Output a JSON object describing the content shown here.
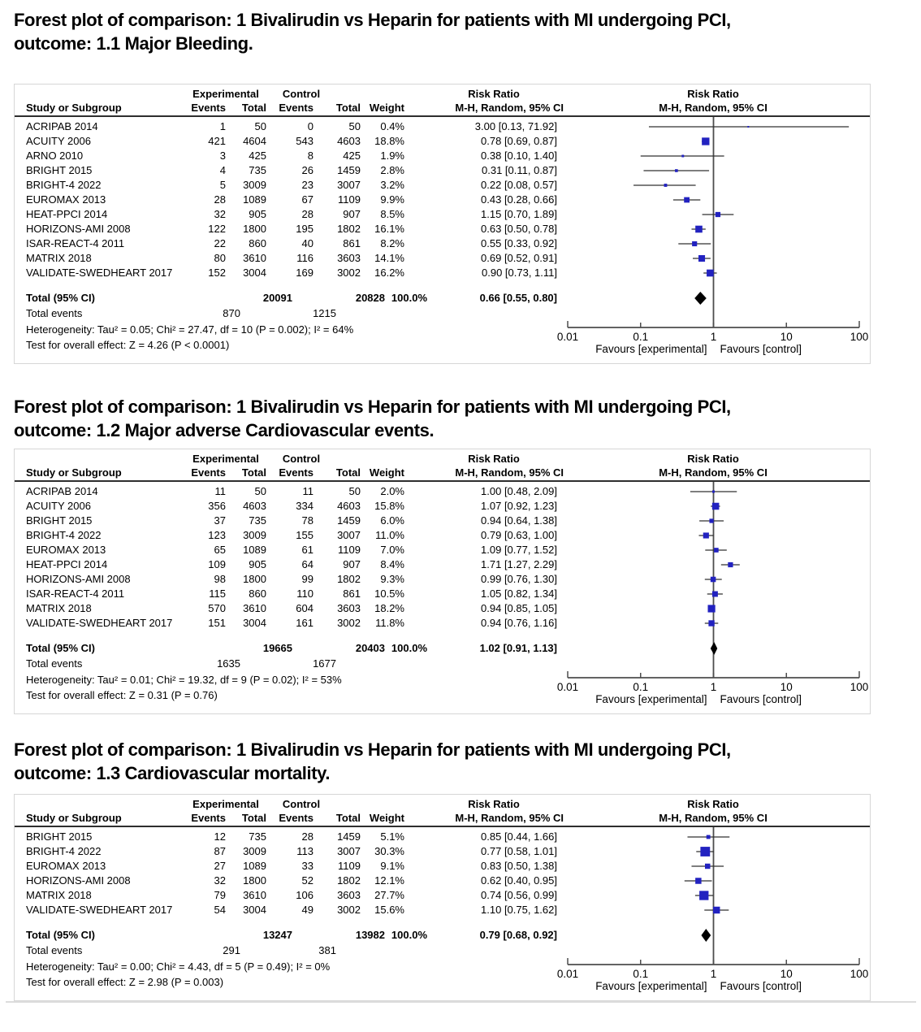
{
  "colors": {
    "marker_blue": "#2222c0",
    "ci_line": "#303030",
    "axis_gray": "#4d4d4d",
    "diamond_black": "#000000",
    "header_rule": "#2e2e2e",
    "panel_border": "#d6d6d6"
  },
  "axis": {
    "scale": "log",
    "min": 0.01,
    "max": 100,
    "tick_labels": [
      "0.01",
      "0.1",
      "1",
      "10",
      "100"
    ],
    "favours_left": "Favours [experimental]",
    "favours_right": "Favours [control]"
  },
  "column_headers": {
    "group_experimental": "Experimental",
    "group_control": "Control",
    "group_risk_ratio_text": "Risk Ratio",
    "group_risk_ratio_plot": "Risk Ratio",
    "study": "Study or Subgroup",
    "events": "Events",
    "total": "Total",
    "weight": "Weight",
    "mh_ci_text": "M-H, Random, 95% CI",
    "mh_ci_plot": "M-H, Random, 95% CI"
  },
  "panels": [
    {
      "title_line1": "Forest plot of comparison: 1 Bivalirudin vs Heparin for patients with MI undergoing PCI,",
      "title_line2": "outcome: 1.1 Major Bleeding.",
      "rows": [
        [
          "ACRIPAB 2014",
          "1",
          "50",
          "0",
          "50",
          "0.4%",
          "3.00 [0.13, 71.92]"
        ],
        [
          "ACUITY 2006",
          "421",
          "4604",
          "543",
          "4603",
          "18.8%",
          "0.78 [0.69, 0.87]"
        ],
        [
          "ARNO 2010",
          "3",
          "425",
          "8",
          "425",
          "1.9%",
          "0.38 [0.10, 1.40]"
        ],
        [
          "BRIGHT 2015",
          "4",
          "735",
          "26",
          "1459",
          "2.8%",
          "0.31 [0.11, 0.87]"
        ],
        [
          "BRIGHT-4 2022",
          "5",
          "3009",
          "23",
          "3007",
          "3.2%",
          "0.22 [0.08, 0.57]"
        ],
        [
          "EUROMAX 2013",
          "28",
          "1089",
          "67",
          "1109",
          "9.9%",
          "0.43 [0.28, 0.66]"
        ],
        [
          "HEAT-PPCI 2014",
          "32",
          "905",
          "28",
          "907",
          "8.5%",
          "1.15 [0.70, 1.89]"
        ],
        [
          "HORIZONS-AMI 2008",
          "122",
          "1800",
          "195",
          "1802",
          "16.1%",
          "0.63 [0.50, 0.78]"
        ],
        [
          "ISAR-REACT-4 2011",
          "22",
          "860",
          "40",
          "861",
          "8.2%",
          "0.55 [0.33, 0.92]"
        ],
        [
          "MATRIX 2018",
          "80",
          "3610",
          "116",
          "3603",
          "14.1%",
          "0.69 [0.52, 0.91]"
        ],
        [
          "VALIDATE-SWEDHEART 2017",
          "152",
          "3004",
          "169",
          "3002",
          "16.2%",
          "0.90 [0.73, 1.11]"
        ]
      ],
      "total_row": [
        "Total (95% CI)",
        "20091",
        "20828",
        "100.0%",
        "0.66 [0.55, 0.80]"
      ],
      "total_events": [
        "Total events",
        "870",
        "1215"
      ],
      "heterogeneity": "Heterogeneity: Tau² = 0.05; Chi² = 27.47, df = 10 (P = 0.002); I² = 64%",
      "overall_effect": "Test for overall effect: Z = 4.26 (P < 0.0001)"
    },
    {
      "title_line1": "Forest plot of comparison: 1 Bivalirudin vs Heparin for patients with MI undergoing PCI,",
      "title_line2": "outcome: 1.2 Major adverse Cardiovascular events.",
      "rows": [
        [
          "ACRIPAB 2014",
          "11",
          "50",
          "11",
          "50",
          "2.0%",
          "1.00 [0.48, 2.09]"
        ],
        [
          "ACUITY 2006",
          "356",
          "4603",
          "334",
          "4603",
          "15.8%",
          "1.07 [0.92, 1.23]"
        ],
        [
          "BRIGHT 2015",
          "37",
          "735",
          "78",
          "1459",
          "6.0%",
          "0.94 [0.64, 1.38]"
        ],
        [
          "BRIGHT-4 2022",
          "123",
          "3009",
          "155",
          "3007",
          "11.0%",
          "0.79 [0.63, 1.00]"
        ],
        [
          "EUROMAX 2013",
          "65",
          "1089",
          "61",
          "1109",
          "7.0%",
          "1.09 [0.77, 1.52]"
        ],
        [
          "HEAT-PPCI 2014",
          "109",
          "905",
          "64",
          "907",
          "8.4%",
          "1.71 [1.27, 2.29]"
        ],
        [
          "HORIZONS-AMI 2008",
          "98",
          "1800",
          "99",
          "1802",
          "9.3%",
          "0.99 [0.76, 1.30]"
        ],
        [
          "ISAR-REACT-4 2011",
          "115",
          "860",
          "110",
          "861",
          "10.5%",
          "1.05 [0.82, 1.34]"
        ],
        [
          "MATRIX 2018",
          "570",
          "3610",
          "604",
          "3603",
          "18.2%",
          "0.94 [0.85, 1.05]"
        ],
        [
          "VALIDATE-SWEDHEART 2017",
          "151",
          "3004",
          "161",
          "3002",
          "11.8%",
          "0.94 [0.76, 1.16]"
        ]
      ],
      "total_row": [
        "Total (95% CI)",
        "19665",
        "20403",
        "100.0%",
        "1.02 [0.91, 1.13]"
      ],
      "total_events": [
        "Total events",
        "1635",
        "1677"
      ],
      "heterogeneity": "Heterogeneity: Tau² = 0.01; Chi² = 19.32, df = 9 (P = 0.02); I² = 53%",
      "overall_effect": "Test for overall effect: Z = 0.31 (P = 0.76)"
    },
    {
      "title_line1": "Forest plot of comparison: 1 Bivalirudin vs Heparin for patients with MI undergoing PCI,",
      "title_line2": "outcome: 1.3 Cardiovascular mortality.",
      "rows": [
        [
          "BRIGHT 2015",
          "12",
          "735",
          "28",
          "1459",
          "5.1%",
          "0.85 [0.44, 1.66]"
        ],
        [
          "BRIGHT-4 2022",
          "87",
          "3009",
          "113",
          "3007",
          "30.3%",
          "0.77 [0.58, 1.01]"
        ],
        [
          "EUROMAX 2013",
          "27",
          "1089",
          "33",
          "1109",
          "9.1%",
          "0.83 [0.50, 1.38]"
        ],
        [
          "HORIZONS-AMI 2008",
          "32",
          "1800",
          "52",
          "1802",
          "12.1%",
          "0.62 [0.40, 0.95]"
        ],
        [
          "MATRIX 2018",
          "79",
          "3610",
          "106",
          "3603",
          "27.7%",
          "0.74 [0.56, 0.99]"
        ],
        [
          "VALIDATE-SWEDHEART 2017",
          "54",
          "3004",
          "49",
          "3002",
          "15.6%",
          "1.10 [0.75, 1.62]"
        ]
      ],
      "total_row": [
        "Total (95% CI)",
        "13247",
        "13982",
        "100.0%",
        "0.79 [0.68, 0.92]"
      ],
      "total_events": [
        "Total events",
        "291",
        "381"
      ],
      "heterogeneity": "Heterogeneity: Tau² = 0.00; Chi² = 4.43, df = 5 (P = 0.49); I² = 0%",
      "overall_effect": "Test for overall effect: Z = 2.98 (P = 0.003)"
    }
  ],
  "chart_data": [
    {
      "type": "scatter",
      "subtype": "forest-plot",
      "title": "1.1 Major Bleeding",
      "x_scale": "log",
      "x_range": [
        0.01,
        100
      ],
      "points": [
        {
          "study": "ACRIPAB 2014",
          "rr": 3.0,
          "ci": [
            0.13,
            71.92
          ],
          "weight_pct": 0.4
        },
        {
          "study": "ACUITY 2006",
          "rr": 0.78,
          "ci": [
            0.69,
            0.87
          ],
          "weight_pct": 18.8
        },
        {
          "study": "ARNO 2010",
          "rr": 0.38,
          "ci": [
            0.1,
            1.4
          ],
          "weight_pct": 1.9
        },
        {
          "study": "BRIGHT 2015",
          "rr": 0.31,
          "ci": [
            0.11,
            0.87
          ],
          "weight_pct": 2.8
        },
        {
          "study": "BRIGHT-4 2022",
          "rr": 0.22,
          "ci": [
            0.08,
            0.57
          ],
          "weight_pct": 3.2
        },
        {
          "study": "EUROMAX 2013",
          "rr": 0.43,
          "ci": [
            0.28,
            0.66
          ],
          "weight_pct": 9.9
        },
        {
          "study": "HEAT-PPCI 2014",
          "rr": 1.15,
          "ci": [
            0.7,
            1.89
          ],
          "weight_pct": 8.5
        },
        {
          "study": "HORIZONS-AMI 2008",
          "rr": 0.63,
          "ci": [
            0.5,
            0.78
          ],
          "weight_pct": 16.1
        },
        {
          "study": "ISAR-REACT-4 2011",
          "rr": 0.55,
          "ci": [
            0.33,
            0.92
          ],
          "weight_pct": 8.2
        },
        {
          "study": "MATRIX 2018",
          "rr": 0.69,
          "ci": [
            0.52,
            0.91
          ],
          "weight_pct": 14.1
        },
        {
          "study": "VALIDATE-SWEDHEART 2017",
          "rr": 0.9,
          "ci": [
            0.73,
            1.11
          ],
          "weight_pct": 16.2
        }
      ],
      "summary": {
        "rr": 0.66,
        "ci": [
          0.55,
          0.8
        ]
      }
    },
    {
      "type": "scatter",
      "subtype": "forest-plot",
      "title": "1.2 Major adverse Cardiovascular events",
      "x_scale": "log",
      "x_range": [
        0.01,
        100
      ],
      "points": [
        {
          "study": "ACRIPAB 2014",
          "rr": 1.0,
          "ci": [
            0.48,
            2.09
          ],
          "weight_pct": 2.0
        },
        {
          "study": "ACUITY 2006",
          "rr": 1.07,
          "ci": [
            0.92,
            1.23
          ],
          "weight_pct": 15.8
        },
        {
          "study": "BRIGHT 2015",
          "rr": 0.94,
          "ci": [
            0.64,
            1.38
          ],
          "weight_pct": 6.0
        },
        {
          "study": "BRIGHT-4 2022",
          "rr": 0.79,
          "ci": [
            0.63,
            1.0
          ],
          "weight_pct": 11.0
        },
        {
          "study": "EUROMAX 2013",
          "rr": 1.09,
          "ci": [
            0.77,
            1.52
          ],
          "weight_pct": 7.0
        },
        {
          "study": "HEAT-PPCI 2014",
          "rr": 1.71,
          "ci": [
            1.27,
            2.29
          ],
          "weight_pct": 8.4
        },
        {
          "study": "HORIZONS-AMI 2008",
          "rr": 0.99,
          "ci": [
            0.76,
            1.3
          ],
          "weight_pct": 9.3
        },
        {
          "study": "ISAR-REACT-4 2011",
          "rr": 1.05,
          "ci": [
            0.82,
            1.34
          ],
          "weight_pct": 10.5
        },
        {
          "study": "MATRIX 2018",
          "rr": 0.94,
          "ci": [
            0.85,
            1.05
          ],
          "weight_pct": 18.2
        },
        {
          "study": "VALIDATE-SWEDHEART 2017",
          "rr": 0.94,
          "ci": [
            0.76,
            1.16
          ],
          "weight_pct": 11.8
        }
      ],
      "summary": {
        "rr": 1.02,
        "ci": [
          0.91,
          1.13
        ]
      }
    },
    {
      "type": "scatter",
      "subtype": "forest-plot",
      "title": "1.3 Cardiovascular mortality",
      "x_scale": "log",
      "x_range": [
        0.01,
        100
      ],
      "points": [
        {
          "study": "BRIGHT 2015",
          "rr": 0.85,
          "ci": [
            0.44,
            1.66
          ],
          "weight_pct": 5.1
        },
        {
          "study": "BRIGHT-4 2022",
          "rr": 0.77,
          "ci": [
            0.58,
            1.01
          ],
          "weight_pct": 30.3
        },
        {
          "study": "EUROMAX 2013",
          "rr": 0.83,
          "ci": [
            0.5,
            1.38
          ],
          "weight_pct": 9.1
        },
        {
          "study": "HORIZONS-AMI 2008",
          "rr": 0.62,
          "ci": [
            0.4,
            0.95
          ],
          "weight_pct": 12.1
        },
        {
          "study": "MATRIX 2018",
          "rr": 0.74,
          "ci": [
            0.56,
            0.99
          ],
          "weight_pct": 27.7
        },
        {
          "study": "VALIDATE-SWEDHEART 2017",
          "rr": 1.1,
          "ci": [
            0.75,
            1.62
          ],
          "weight_pct": 15.6
        }
      ],
      "summary": {
        "rr": 0.79,
        "ci": [
          0.68,
          0.92
        ]
      }
    }
  ]
}
